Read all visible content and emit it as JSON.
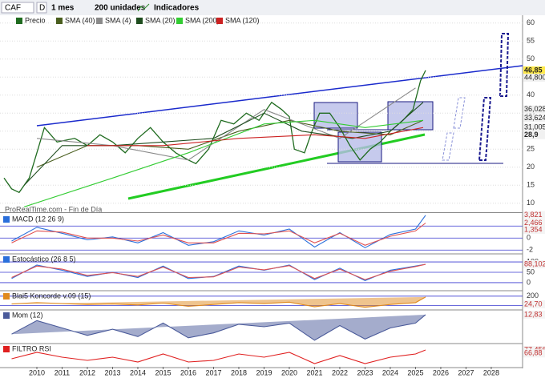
{
  "toolbar": {
    "symbol": "CAF",
    "period_code": "D",
    "period": "1 mes",
    "units": "200 unidades",
    "indicators": "Indicadores"
  },
  "watermark": "ProRealTime.com - Fin de Día",
  "chart_data": {
    "type": "line",
    "xlim": [
      2008.54,
      2029.24
    ],
    "xticks": [
      2010,
      2011,
      2012,
      2013,
      2014,
      2015,
      2016,
      2017,
      2018,
      2019,
      2020,
      2021,
      2022,
      2023,
      2024,
      2025,
      2026,
      2027,
      2028
    ],
    "ylim": [
      7.5,
      61.5
    ],
    "yticks": [
      10,
      15,
      20,
      25,
      30,
      35,
      40,
      45,
      50,
      55,
      60
    ],
    "grid": true,
    "x": [
      2008.7,
      2009.0,
      2009.3,
      2009.7,
      2010.0,
      2010.3,
      2010.8,
      2011.5,
      2012.0,
      2012.5,
      2013.0,
      2013.5,
      2014.0,
      2014.5,
      2015.0,
      2015.5,
      2016.0,
      2016.3,
      2016.8,
      2017.3,
      2017.8,
      2018.3,
      2018.8,
      2019.3,
      2019.7,
      2020.0,
      2020.2,
      2020.6,
      2020.9,
      2021.2,
      2021.6,
      2022.0,
      2022.4,
      2022.8,
      2023.2,
      2023.6,
      2024.0,
      2024.5,
      2024.9,
      2025.2,
      2025.4
    ],
    "series": [
      {
        "name": "Precio",
        "color": "#1f6b1f",
        "values": [
          17,
          14,
          13,
          17,
          24,
          31,
          27,
          28,
          26,
          29,
          27,
          24,
          28,
          31,
          27,
          24,
          22,
          21,
          25,
          33,
          32,
          35,
          33,
          38,
          36,
          34,
          25,
          24,
          30,
          35,
          35,
          31,
          26,
          22,
          25,
          27,
          30,
          33,
          36,
          44,
          46.85
        ]
      },
      {
        "name": "SMA (40)",
        "color": "#4a5e1e",
        "x": [
          2010,
          2012,
          2014,
          2016,
          2018,
          2020,
          2022,
          2024,
          2025.3
        ],
        "values": [
          20,
          26,
          26,
          25,
          30,
          33,
          30,
          29,
          33
        ]
      },
      {
        "name": "SMA (4)",
        "color": "#8a8a8a",
        "x": [
          2010,
          2013,
          2016,
          2019,
          2022,
          2025
        ],
        "values": [
          28,
          26,
          22,
          36,
          28,
          42
        ]
      },
      {
        "name": "SMA (20)",
        "color": "#1f4d1f",
        "x": [
          2009.5,
          2011,
          2013,
          2015,
          2017,
          2019,
          2020.5,
          2022.5,
          2024,
          2025.3
        ],
        "values": [
          15,
          26,
          26,
          27,
          28,
          35,
          30,
          28,
          30,
          38
        ]
      },
      {
        "name": "SMA (200)",
        "color": "#33cc33",
        "x": [
          2009.5,
          2013,
          2016,
          2019,
          2021,
          2023,
          2025.3
        ],
        "values": [
          9,
          17,
          24,
          32,
          33,
          31,
          33
        ]
      },
      {
        "name": "SMA (120)",
        "color": "#cc2222",
        "x": [
          2012,
          2015,
          2018,
          2021,
          2023,
          2025.3
        ],
        "values": [
          26,
          26,
          28,
          29,
          28,
          31
        ]
      }
    ],
    "price_labels": [
      {
        "value": 46.85,
        "label": "46,85"
      },
      {
        "value": 44.8,
        "label": "44,800"
      },
      {
        "value": 36.028,
        "label": "36,028"
      },
      {
        "value": 33.624,
        "label": "33,624"
      },
      {
        "value": 31.005,
        "label": "31,005"
      },
      {
        "value": 28.9,
        "label": "28,9"
      }
    ],
    "panels": [
      {
        "title": "MACD (12 26 9)",
        "ylim": [
          -2.5,
          3.9
        ],
        "yticks": [
          2,
          0,
          -2
        ],
        "x": [
          2009,
          2010,
          2011,
          2012,
          2013,
          2014,
          2015,
          2016,
          2017,
          2018,
          2019,
          2020,
          2021,
          2022,
          2023,
          2024,
          2025,
          2025.4
        ],
        "series": [
          {
            "color": "#2a6fdb",
            "values": [
              -0.5,
              1.8,
              0.8,
              -0.3,
              0.2,
              -0.8,
              0.9,
              -1.2,
              -0.6,
              1.2,
              0.5,
              1.5,
              -1.5,
              0.9,
              -1.6,
              0.6,
              1.5,
              3.8
            ]
          },
          {
            "color": "#e05050",
            "values": [
              -0.8,
              1.2,
              1.0,
              0,
              0,
              -0.5,
              0.5,
              -0.8,
              -0.8,
              0.8,
              0.7,
              1.2,
              -0.8,
              0.8,
              -1.2,
              0.3,
              1.2,
              2.5
            ]
          }
        ],
        "labels": [
          {
            "value": 3.821,
            "label": "3,821"
          },
          {
            "value": 2.466,
            "label": "2,466"
          },
          {
            "value": 1.354,
            "label": "1,354"
          }
        ]
      },
      {
        "title": "Estocástico (26 8 5)",
        "ylim": [
          -35,
          135
        ],
        "yticks": [
          100,
          50,
          0
        ],
        "x": [
          2009,
          2010,
          2011,
          2012,
          2013,
          2014,
          2015,
          2016,
          2017,
          2018,
          2019,
          2020,
          2021,
          2022,
          2023,
          2024,
          2025,
          2025.4
        ],
        "series": [
          {
            "color": "#2a6fdb",
            "values": [
              20,
              85,
              60,
              30,
              50,
              25,
              80,
              20,
              30,
              80,
              60,
              85,
              15,
              70,
              10,
              60,
              80,
              88.8
            ]
          },
          {
            "color": "#e05050",
            "values": [
              25,
              80,
              65,
              35,
              48,
              30,
              75,
              25,
              28,
              75,
              62,
              82,
              20,
              65,
              15,
              55,
              78,
              88.1
            ]
          }
        ],
        "labels": [
          {
            "value": 88.757,
            "label": "88,757"
          },
          {
            "value": 88.102,
            "label": "88,102"
          }
        ]
      },
      {
        "title": "Blai5 Koncorde v.09 (15)",
        "ylim": [
          -80,
          300
        ],
        "yticks": [
          200,
          0
        ],
        "x": [
          2009,
          2010,
          2011,
          2012,
          2013,
          2014,
          2015,
          2016,
          2017,
          2018,
          2019,
          2020,
          2021,
          2022,
          2023,
          2024,
          2025,
          2025.4
        ],
        "series": [
          {
            "color": "#e08a1e",
            "values": [
              30,
              60,
              40,
              20,
              30,
              10,
              50,
              -20,
              20,
              60,
              40,
              70,
              -30,
              40,
              -40,
              20,
              60,
              180
            ]
          }
        ],
        "labels": [
          {
            "value": 24.7,
            "label": "24,70"
          }
        ]
      },
      {
        "title": "Mom (12)",
        "ylim": [
          -10,
          16
        ],
        "x": [
          2009,
          2010,
          2011,
          2012,
          2013,
          2014,
          2015,
          2016,
          2017,
          2018,
          2019,
          2020,
          2021,
          2022,
          2023,
          2024,
          2025,
          2025.4
        ],
        "series": [
          {
            "color": "#4a5a9a",
            "values": [
              -3,
              8,
              2,
              -4,
              1,
              -5,
              6,
              -6,
              -2,
              5,
              3,
              6,
              -8,
              4,
              -7,
              2,
              6,
              12.83
            ]
          }
        ],
        "labels": [
          {
            "value": 12.83,
            "label": "12,83"
          }
        ]
      },
      {
        "title": "FILTRO RSI",
        "ylim": [
          25,
          95
        ],
        "x": [
          2009,
          2010,
          2011,
          2012,
          2013,
          2014,
          2015,
          2016,
          2017,
          2018,
          2019,
          2020,
          2021,
          2022,
          2023,
          2024,
          2025,
          2025.4
        ],
        "series": [
          {
            "color": "#e02020",
            "values": [
              50,
              70,
              55,
              45,
              55,
              40,
              65,
              40,
              45,
              65,
              55,
              70,
              35,
              60,
              35,
              55,
              65,
              77.456
            ]
          }
        ],
        "labels": [
          {
            "value": 77.456,
            "label": "77,456"
          },
          {
            "value": 66.88,
            "label": "66,88"
          }
        ]
      }
    ]
  }
}
